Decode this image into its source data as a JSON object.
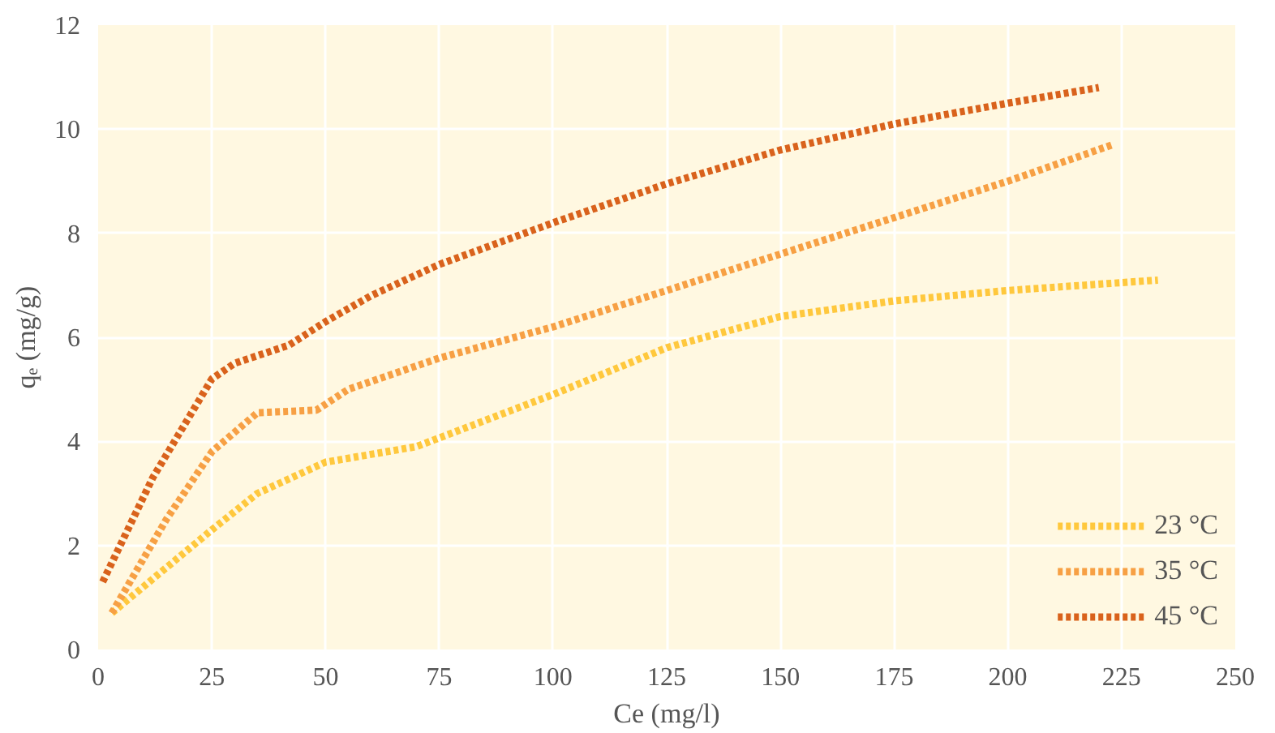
{
  "chart_data": {
    "type": "line",
    "xlabel": "Ce (mg/l)",
    "ylabel": "qₑ (mg/g)",
    "xlim": [
      0,
      250
    ],
    "xticks": [
      0,
      25,
      50,
      75,
      100,
      125,
      150,
      175,
      200,
      225,
      250
    ],
    "ylim": [
      0,
      12
    ],
    "yticks": [
      0,
      2,
      4,
      6,
      8,
      10,
      12
    ],
    "grid": true,
    "legend": "bottom right",
    "marker": "none",
    "line_style": "dotted",
    "series": [
      {
        "name": "23 °C",
        "color": "#ffc83d",
        "x": [
          3,
          25,
          35,
          50,
          70,
          100,
          125,
          150,
          175,
          200,
          233
        ],
        "values": [
          0.7,
          2.3,
          3.0,
          3.6,
          3.9,
          4.9,
          5.8,
          6.4,
          6.7,
          6.9,
          7.1
        ]
      },
      {
        "name": "35 °C",
        "color": "#f7a044",
        "x": [
          3,
          15,
          25,
          35,
          48,
          55,
          75,
          100,
          125,
          150,
          175,
          200,
          223
        ],
        "values": [
          0.7,
          2.5,
          3.8,
          4.55,
          4.6,
          5.0,
          5.6,
          6.2,
          6.9,
          7.6,
          8.3,
          9.0,
          9.7
        ]
      },
      {
        "name": "45 °C",
        "color": "#d9621c",
        "x": [
          1,
          12,
          25,
          30,
          42,
          50,
          60,
          75,
          100,
          125,
          150,
          175,
          200,
          220
        ],
        "values": [
          1.3,
          3.3,
          5.2,
          5.5,
          5.85,
          6.3,
          6.8,
          7.4,
          8.2,
          8.95,
          9.6,
          10.1,
          10.5,
          10.8
        ]
      }
    ]
  }
}
